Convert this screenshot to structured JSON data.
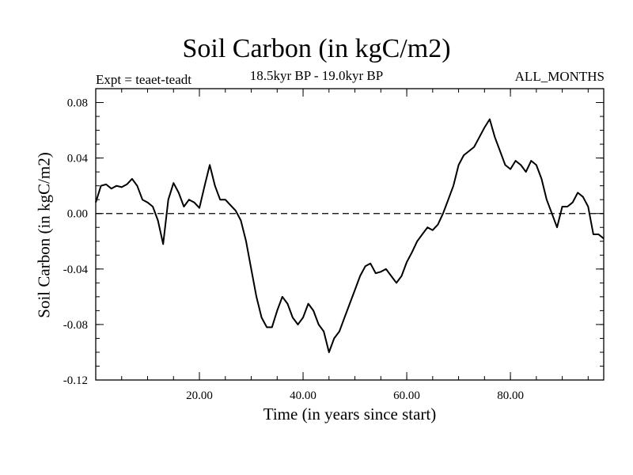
{
  "chart_data": {
    "type": "line",
    "title": "Soil Carbon (in kgC/m2)",
    "subtitle": "18.5kyr BP - 19.0kyr BP",
    "left_label": "Expt = teaet-teadt",
    "right_label": "ALL_MONTHS",
    "xlabel": "Time (in years since start)",
    "ylabel": "Soil Carbon (in kgC/m2)",
    "xlim": [
      0,
      98
    ],
    "ylim": [
      -0.12,
      0.09
    ],
    "xticks": [
      20,
      40,
      60,
      80
    ],
    "xtick_labels": [
      "20.00",
      "40.00",
      "60.00",
      "80.00"
    ],
    "yticks": [
      0.08,
      0.04,
      0.0,
      -0.04,
      -0.08,
      -0.12
    ],
    "ytick_labels": [
      "0.08",
      "0.04",
      "0.00",
      "-0.04",
      "-0.08",
      "-0.12"
    ],
    "reference_line": {
      "y": 0.0,
      "style": "dashed"
    },
    "series": [
      {
        "x": [
          0,
          1,
          2,
          3,
          4,
          5,
          6,
          7,
          8,
          9,
          10,
          11,
          12,
          13,
          14,
          15,
          16,
          17,
          18,
          19,
          20,
          21,
          22,
          23,
          24,
          25,
          26,
          27,
          28,
          29,
          30,
          31,
          32,
          33,
          34,
          35,
          36,
          37,
          38,
          39,
          40,
          41,
          42,
          43,
          44,
          45,
          46,
          47,
          48,
          49,
          50,
          51,
          52,
          53,
          54,
          55,
          56,
          57,
          58,
          59,
          60,
          61,
          62,
          63,
          64,
          65,
          66,
          67,
          68,
          69,
          70,
          71,
          72,
          73,
          74,
          75,
          76,
          77,
          78,
          79,
          80,
          81,
          82,
          83,
          84,
          85,
          86,
          87,
          88,
          89,
          90,
          91,
          92,
          93,
          94,
          95,
          96,
          97,
          98
        ],
        "values": [
          0.008,
          0.02,
          0.021,
          0.018,
          0.02,
          0.019,
          0.021,
          0.025,
          0.02,
          0.01,
          0.008,
          0.005,
          -0.005,
          -0.022,
          0.01,
          0.022,
          0.015,
          0.005,
          0.01,
          0.008,
          0.004,
          0.02,
          0.035,
          0.02,
          0.01,
          0.01,
          0.006,
          0.002,
          -0.005,
          -0.02,
          -0.04,
          -0.06,
          -0.075,
          -0.082,
          -0.082,
          -0.07,
          -0.06,
          -0.065,
          -0.075,
          -0.08,
          -0.075,
          -0.065,
          -0.07,
          -0.08,
          -0.085,
          -0.1,
          -0.09,
          -0.085,
          -0.075,
          -0.065,
          -0.055,
          -0.045,
          -0.038,
          -0.036,
          -0.043,
          -0.042,
          -0.04,
          -0.045,
          -0.05,
          -0.045,
          -0.035,
          -0.028,
          -0.02,
          -0.015,
          -0.01,
          -0.012,
          -0.008,
          0.0,
          0.01,
          0.02,
          0.035,
          0.042,
          0.045,
          0.048,
          0.055,
          0.062,
          0.068,
          0.055,
          0.045,
          0.035,
          0.032,
          0.038,
          0.035,
          0.03,
          0.038,
          0.035,
          0.025,
          0.01,
          0.0,
          -0.01,
          0.005,
          0.005,
          0.008,
          0.015,
          0.012,
          0.005,
          -0.015,
          -0.015,
          -0.018
        ]
      }
    ]
  }
}
